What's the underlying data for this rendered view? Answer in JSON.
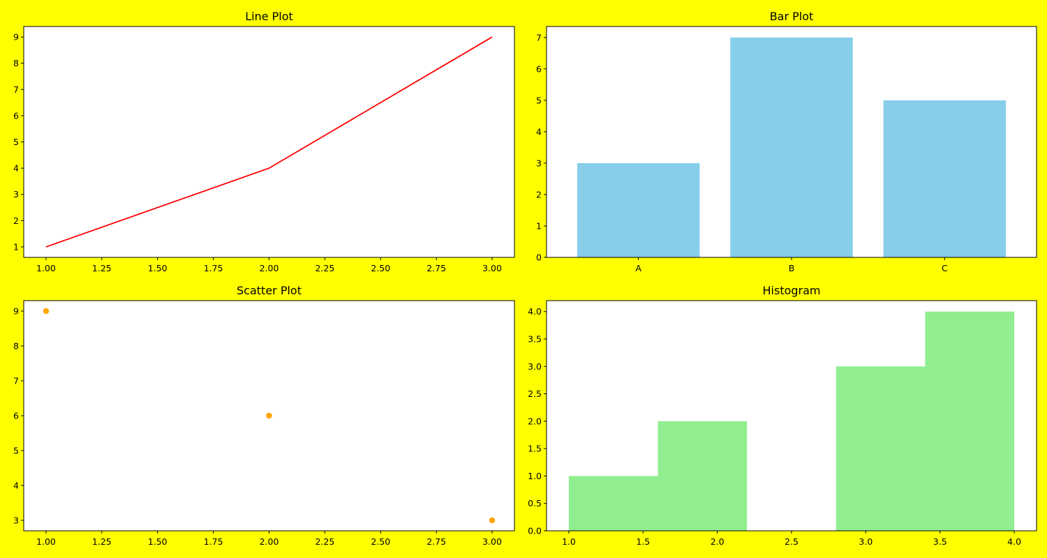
{
  "colors": {
    "figure_background": "#ffff00",
    "axes_background": "#ffffff"
  },
  "chart_data": [
    {
      "type": "line",
      "title": "Line Plot",
      "xlabel": "",
      "ylabel": "",
      "x": [
        1,
        2,
        3
      ],
      "series": [
        {
          "values": [
            1,
            4,
            9
          ],
          "color": "#ff0000"
        }
      ],
      "xlim": [
        0.9,
        3.1
      ],
      "ylim": [
        0.6,
        9.4
      ],
      "xticks": [
        1.0,
        1.25,
        1.5,
        1.75,
        2.0,
        2.25,
        2.5,
        2.75,
        3.0
      ],
      "xtick_labels": [
        "1.00",
        "1.25",
        "1.50",
        "1.75",
        "2.00",
        "2.25",
        "2.50",
        "2.75",
        "3.00"
      ],
      "yticks": [
        1,
        2,
        3,
        4,
        5,
        6,
        7,
        8,
        9
      ],
      "ytick_labels": [
        "1",
        "2",
        "3",
        "4",
        "5",
        "6",
        "7",
        "8",
        "9"
      ],
      "grid": false
    },
    {
      "type": "bar",
      "title": "Bar Plot",
      "xlabel": "",
      "ylabel": "",
      "categories": [
        "A",
        "B",
        "C"
      ],
      "values": [
        3,
        7,
        5
      ],
      "color": "#87ceeb",
      "ylim": [
        0,
        7.35
      ],
      "yticks": [
        0,
        1,
        2,
        3,
        4,
        5,
        6,
        7
      ],
      "ytick_labels": [
        "0",
        "1",
        "2",
        "3",
        "4",
        "5",
        "6",
        "7"
      ],
      "grid": false
    },
    {
      "type": "scatter",
      "title": "Scatter Plot",
      "xlabel": "",
      "ylabel": "",
      "x": [
        1,
        2,
        3
      ],
      "y": [
        9,
        6,
        3
      ],
      "color": "#ffa500",
      "xlim": [
        0.9,
        3.1
      ],
      "ylim": [
        2.7,
        9.3
      ],
      "xticks": [
        1.0,
        1.25,
        1.5,
        1.75,
        2.0,
        2.25,
        2.5,
        2.75,
        3.0
      ],
      "xtick_labels": [
        "1.00",
        "1.25",
        "1.50",
        "1.75",
        "2.00",
        "2.25",
        "2.50",
        "2.75",
        "3.00"
      ],
      "yticks": [
        3,
        4,
        5,
        6,
        7,
        8,
        9
      ],
      "ytick_labels": [
        "3",
        "4",
        "5",
        "6",
        "7",
        "8",
        "9"
      ],
      "grid": false
    },
    {
      "type": "bar",
      "subtype": "histogram",
      "title": "Histogram",
      "xlabel": "",
      "ylabel": "",
      "bin_edges": [
        1.0,
        1.6,
        2.2,
        2.8,
        3.4,
        4.0
      ],
      "counts": [
        1,
        2,
        0,
        3,
        4
      ],
      "color": "#90ee90",
      "xlim": [
        0.85,
        4.15
      ],
      "ylim": [
        0,
        4.2
      ],
      "xticks": [
        1.0,
        1.5,
        2.0,
        2.5,
        3.0,
        3.5,
        4.0
      ],
      "xtick_labels": [
        "1.0",
        "1.5",
        "2.0",
        "2.5",
        "3.0",
        "3.5",
        "4.0"
      ],
      "yticks": [
        0,
        0.5,
        1.0,
        1.5,
        2.0,
        2.5,
        3.0,
        3.5,
        4.0
      ],
      "ytick_labels": [
        "0.0",
        "0.5",
        "1.0",
        "1.5",
        "2.0",
        "2.5",
        "3.0",
        "3.5",
        "4.0"
      ],
      "grid": false
    }
  ]
}
